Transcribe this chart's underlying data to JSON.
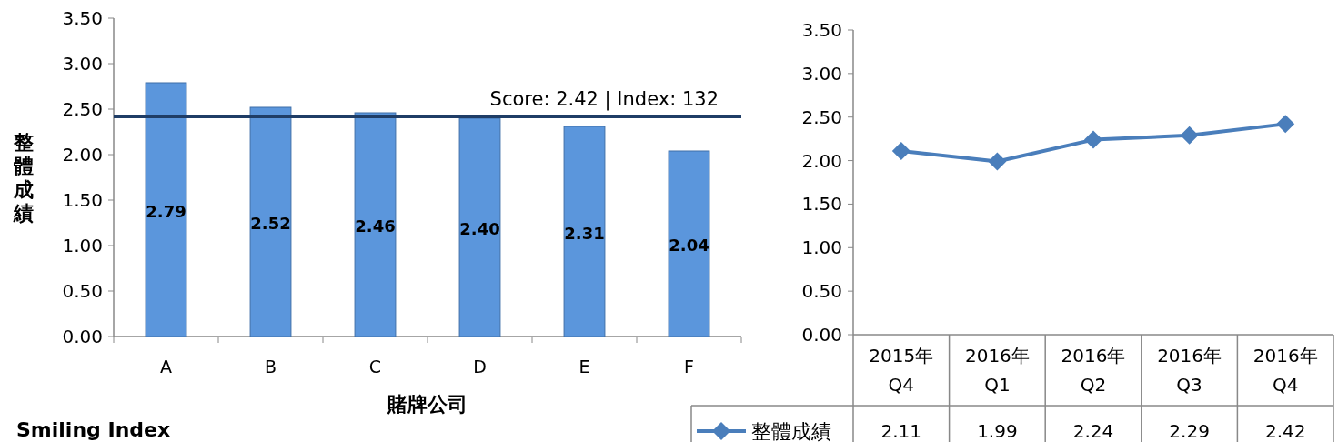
{
  "chart_data": [
    {
      "type": "bar",
      "categories": [
        "A",
        "B",
        "C",
        "D",
        "E",
        "F"
      ],
      "values": [
        2.79,
        2.52,
        2.46,
        2.4,
        2.31,
        2.04
      ],
      "color": "#5b96dc",
      "value_labels": [
        "2.79",
        "2.52",
        "2.46",
        "2.40",
        "2.31",
        "2.04"
      ],
      "ylim": [
        0,
        3.5
      ],
      "yticks": [
        {
          "value": 0,
          "label": "0.00"
        },
        {
          "value": 0.5,
          "label": "0.50"
        },
        {
          "value": 1,
          "label": "1.00"
        },
        {
          "value": 1.5,
          "label": "1.50"
        },
        {
          "value": 2,
          "label": "2.00"
        },
        {
          "value": 2.5,
          "label": "2.50"
        },
        {
          "value": 3,
          "label": "3.00"
        },
        {
          "value": 3.5,
          "label": "3.50"
        }
      ],
      "ylabel": "整體成績",
      "xlabel": "賭牌公司",
      "grid": false,
      "ref_lines": [
        {
          "axis": "y",
          "value": 2.42,
          "label": "Score: 2.42 | Index: 132",
          "color": "#1f3d66"
        }
      ],
      "annotations": [
        "Smiling Index"
      ]
    },
    {
      "type": "line",
      "categories": [
        "2015年\nQ4",
        "2016年\nQ1",
        "2016年\nQ2",
        "2016年\nQ3",
        "2016年\nQ4"
      ],
      "series": [
        {
          "name": "整體成績",
          "color": "#4a7ebb",
          "values": [
            2.11,
            1.99,
            2.24,
            2.29,
            2.42
          ]
        }
      ],
      "data_labels": true,
      "marker": "diamond",
      "legend": "bottom",
      "grid": false,
      "ylim": [
        0,
        3.5
      ],
      "yticks": [
        {
          "value": 0,
          "label": "0.00"
        },
        {
          "value": 0.5,
          "label": "0.50"
        },
        {
          "value": 1,
          "label": "1.00"
        },
        {
          "value": 1.5,
          "label": "1.50"
        },
        {
          "value": 2,
          "label": "2.00"
        },
        {
          "value": 2.5,
          "label": "2.50"
        },
        {
          "value": 3,
          "label": "3.00"
        },
        {
          "value": 3.5,
          "label": "3.50"
        }
      ]
    }
  ]
}
